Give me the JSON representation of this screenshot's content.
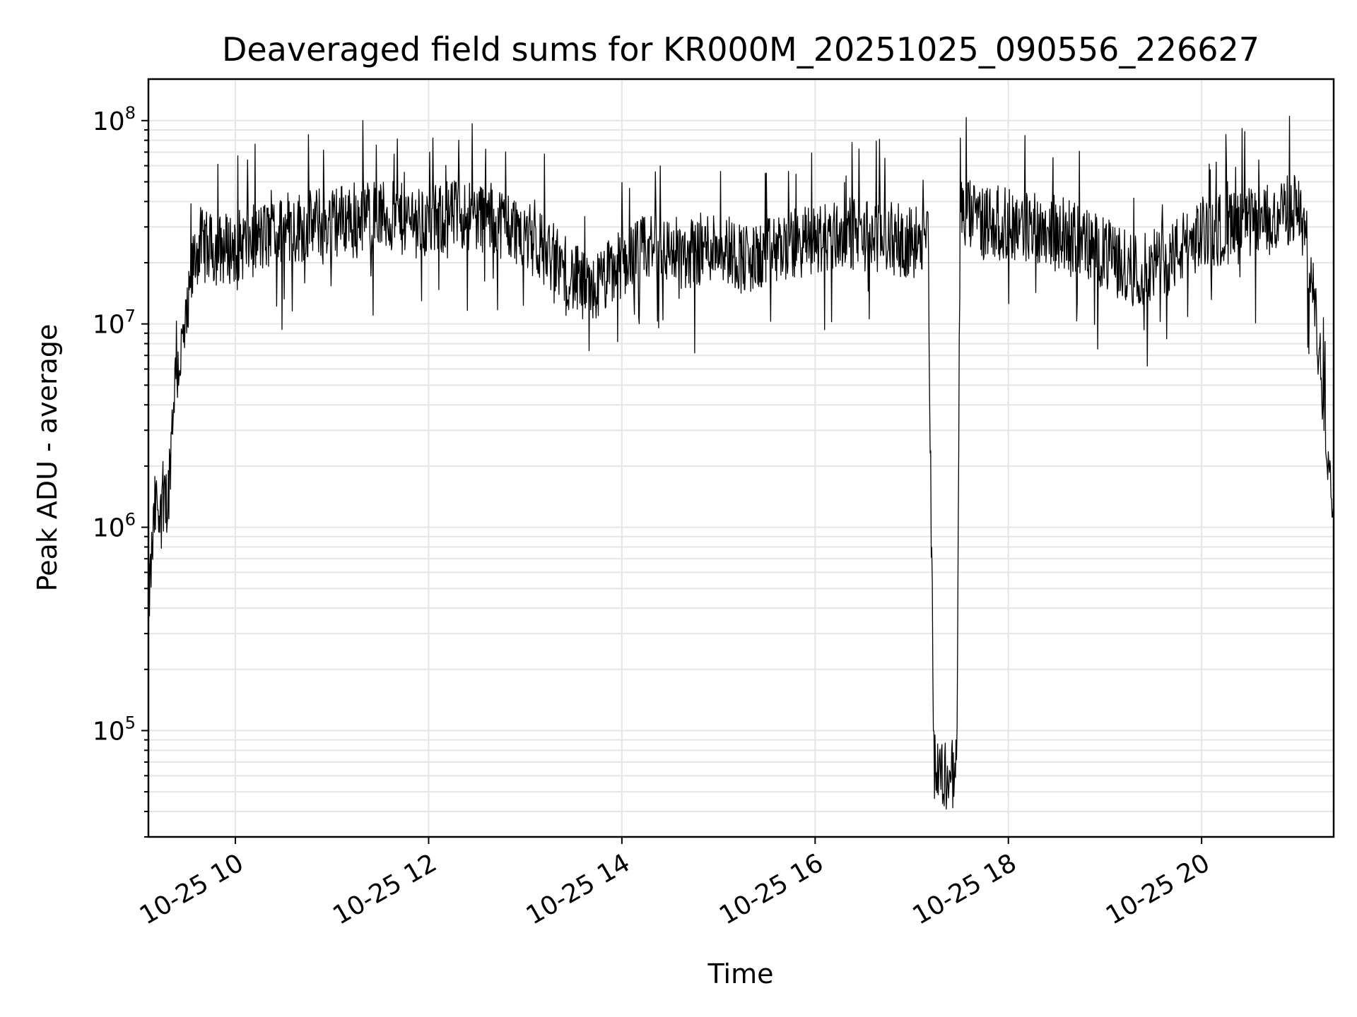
{
  "chart_data": {
    "type": "line",
    "title": "Deaveraged field sums for KR000M_20251025_090556_226627",
    "xlabel": "Time",
    "ylabel": "Peak ADU - average",
    "x_axis": {
      "kind": "datetime",
      "range": [
        "2025-10-25 09:06",
        "2025-10-25 21:22"
      ],
      "ticks": [
        {
          "value": "2025-10-25 10:00",
          "label": "10-25 10"
        },
        {
          "value": "2025-10-25 12:00",
          "label": "10-25 12"
        },
        {
          "value": "2025-10-25 14:00",
          "label": "10-25 14"
        },
        {
          "value": "2025-10-25 16:00",
          "label": "10-25 16"
        },
        {
          "value": "2025-10-25 18:00",
          "label": "10-25 18"
        },
        {
          "value": "2025-10-25 20:00",
          "label": "10-25 20"
        }
      ]
    },
    "y_axis": {
      "scale": "log",
      "range": [
        30000,
        160000000
      ],
      "ticks": [
        {
          "value": 100000,
          "base": "10",
          "exp": "5"
        },
        {
          "value": 1000000,
          "base": "10",
          "exp": "6"
        },
        {
          "value": 10000000,
          "base": "10",
          "exp": "7"
        },
        {
          "value": 100000000,
          "base": "10",
          "exp": "8"
        }
      ]
    },
    "grid": true,
    "line_color": "#000000",
    "grid_color": "#e5e5e5",
    "series": [
      {
        "x": [
          "2025-10-25 09:06",
          "2025-10-25 09:10",
          "2025-10-25 09:14",
          "2025-10-25 09:18",
          "2025-10-25 09:22",
          "2025-10-25 09:26",
          "2025-10-25 09:30",
          "2025-10-25 09:34",
          "2025-10-25 09:38",
          "2025-10-25 09:45",
          "2025-10-25 10:00",
          "2025-10-25 10:20",
          "2025-10-25 10:40",
          "2025-10-25 11:00",
          "2025-10-25 11:20",
          "2025-10-25 11:40",
          "2025-10-25 12:00",
          "2025-10-25 12:20",
          "2025-10-25 12:40",
          "2025-10-25 13:00",
          "2025-10-25 13:20",
          "2025-10-25 13:40",
          "2025-10-25 14:00",
          "2025-10-25 14:20",
          "2025-10-25 14:40",
          "2025-10-25 15:00",
          "2025-10-25 15:20",
          "2025-10-25 15:40",
          "2025-10-25 16:00",
          "2025-10-25 16:20",
          "2025-10-25 16:40",
          "2025-10-25 17:00",
          "2025-10-25 17:10",
          "2025-10-25 17:12",
          "2025-10-25 17:14",
          "2025-10-25 17:20",
          "2025-10-25 17:28",
          "2025-10-25 17:30",
          "2025-10-25 17:40",
          "2025-10-25 18:00",
          "2025-10-25 18:20",
          "2025-10-25 18:40",
          "2025-10-25 19:00",
          "2025-10-25 19:20",
          "2025-10-25 19:40",
          "2025-10-25 20:00",
          "2025-10-25 20:20",
          "2025-10-25 20:40",
          "2025-10-25 20:50",
          "2025-10-25 21:00",
          "2025-10-25 21:05",
          "2025-10-25 21:10",
          "2025-10-25 21:15",
          "2025-10-25 21:20",
          "2025-10-25 21:22"
        ],
        "values": [
          400000,
          1200000,
          1500000,
          1300000,
          5000000,
          7000000,
          10000000,
          20000000,
          25000000,
          23000000,
          24000000,
          27000000,
          30000000,
          32000000,
          35000000,
          33000000,
          31000000,
          35000000,
          33000000,
          28000000,
          20000000,
          14000000,
          20000000,
          24000000,
          22000000,
          25000000,
          20000000,
          24000000,
          26000000,
          28000000,
          27000000,
          25000000,
          30000000,
          1200000,
          65000,
          60000,
          62000,
          35000000,
          33000000,
          31000000,
          30000000,
          27000000,
          22000000,
          18000000,
          21000000,
          28000000,
          30000000,
          32000000,
          35000000,
          38000000,
          25000000,
          12000000,
          5000000,
          1800000,
          1500000
        ]
      }
    ]
  }
}
